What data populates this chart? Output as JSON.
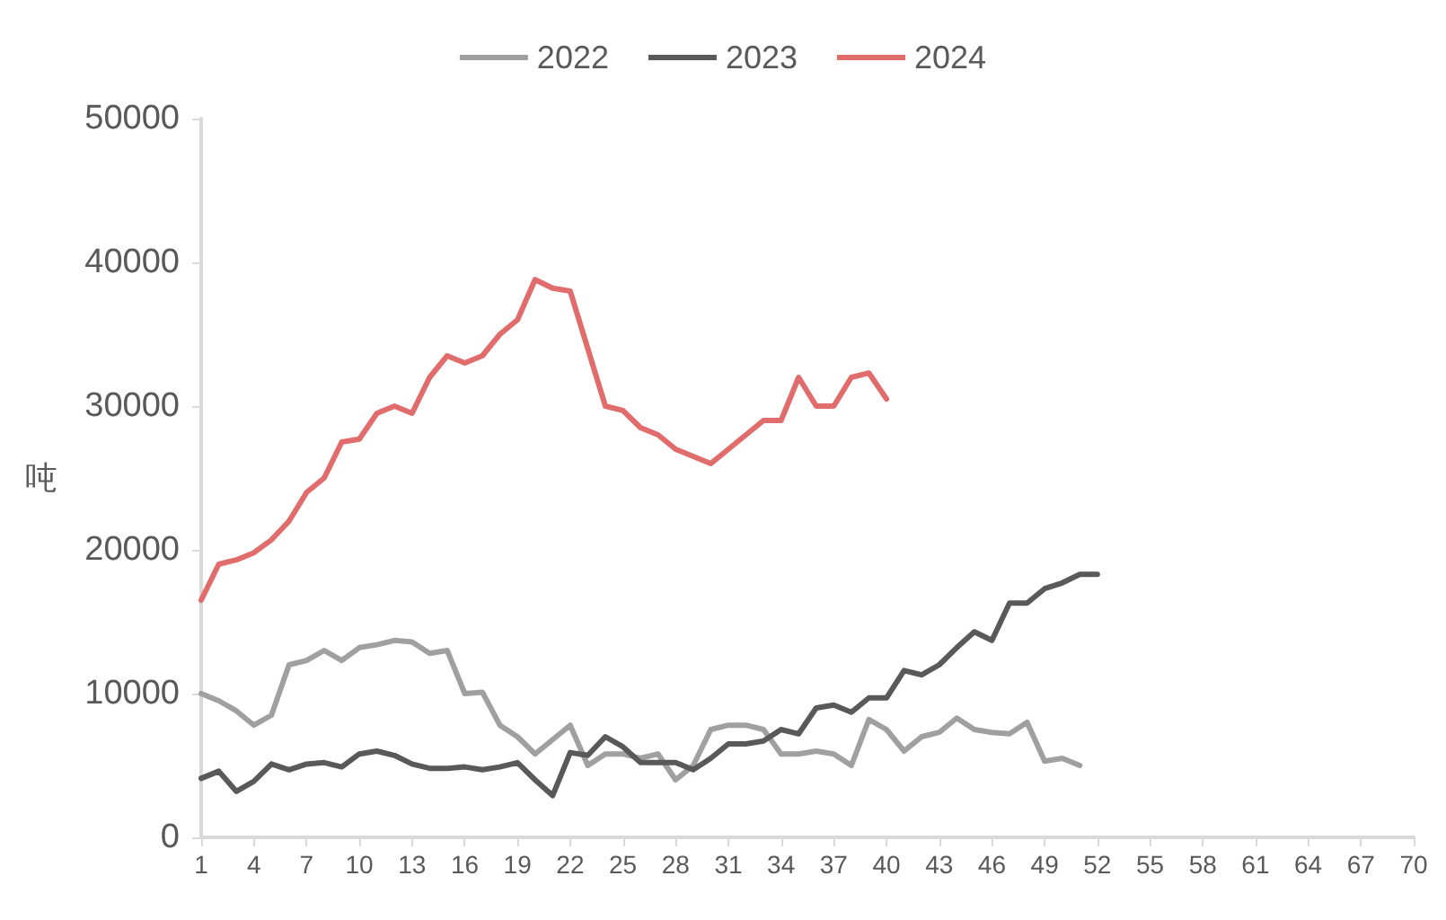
{
  "chart_data": {
    "type": "line",
    "ylabel": "吨",
    "legend": "top",
    "grid": false,
    "marker": "none",
    "line_style": "solid",
    "xlim": [
      1,
      70
    ],
    "xticks": [
      1,
      4,
      7,
      10,
      13,
      16,
      19,
      22,
      25,
      28,
      31,
      34,
      37,
      40,
      43,
      46,
      49,
      52,
      55,
      58,
      61,
      64,
      67,
      70
    ],
    "ylim": [
      0,
      50000
    ],
    "yticks": [
      0,
      10000,
      20000,
      30000,
      40000,
      50000
    ],
    "series": [
      {
        "name": "2022",
        "color": "#a0a0a0",
        "x": [
          1,
          2,
          3,
          4,
          5,
          6,
          7,
          8,
          9,
          10,
          11,
          12,
          13,
          14,
          15,
          16,
          17,
          18,
          19,
          20,
          21,
          22,
          23,
          24,
          25,
          26,
          27,
          28,
          29,
          30,
          31,
          32,
          33,
          34,
          35,
          36,
          37,
          38,
          39,
          40,
          41,
          42,
          43,
          44,
          45,
          46,
          47,
          48,
          49,
          50,
          51
        ],
        "values": [
          10000,
          9500,
          8800,
          7800,
          8500,
          12000,
          12300,
          13000,
          12300,
          13200,
          13400,
          13700,
          13600,
          12800,
          13000,
          10000,
          10100,
          7800,
          7000,
          5800,
          6800,
          7800,
          5000,
          5800,
          5800,
          5500,
          5800,
          4000,
          5000,
          7500,
          7800,
          7800,
          7500,
          5800,
          5800,
          6000,
          5800,
          5000,
          8200,
          7500,
          6000,
          7000,
          7300,
          8300,
          7500,
          7300,
          7200,
          8000,
          5300,
          5500,
          5000
        ]
      },
      {
        "name": "2023",
        "color": "#595959",
        "x": [
          1,
          2,
          3,
          4,
          5,
          6,
          7,
          8,
          9,
          10,
          11,
          12,
          13,
          14,
          15,
          16,
          17,
          18,
          19,
          20,
          21,
          22,
          23,
          24,
          25,
          26,
          27,
          28,
          29,
          30,
          31,
          32,
          33,
          34,
          35,
          36,
          37,
          38,
          39,
          40,
          41,
          42,
          43,
          44,
          45,
          46,
          47,
          48,
          49,
          50,
          51,
          52
        ],
        "values": [
          4100,
          4600,
          3200,
          3900,
          5100,
          4700,
          5100,
          5200,
          4900,
          5800,
          6000,
          5700,
          5100,
          4800,
          4800,
          4900,
          4700,
          4900,
          5200,
          4000,
          2900,
          5900,
          5700,
          7000,
          6300,
          5200,
          5200,
          5200,
          4700,
          5500,
          6500,
          6500,
          6700,
          7500,
          7200,
          9000,
          9200,
          8700,
          9700,
          9700,
          11600,
          11300,
          12000,
          13200,
          14300,
          13700,
          16300,
          16300,
          17300,
          17700,
          18300,
          18300
        ]
      },
      {
        "name": "2024",
        "color": "#e06c6c",
        "x": [
          1,
          2,
          3,
          4,
          5,
          6,
          7,
          8,
          9,
          10,
          11,
          12,
          13,
          14,
          15,
          16,
          17,
          18,
          19,
          20,
          21,
          22,
          23,
          24,
          25,
          26,
          27,
          28,
          29,
          30,
          31,
          32,
          33,
          34,
          35,
          36,
          37,
          38,
          39,
          40
        ],
        "values": [
          16500,
          19000,
          19300,
          19800,
          20700,
          22000,
          24000,
          25000,
          27500,
          27700,
          29500,
          30000,
          29500,
          32000,
          33500,
          33000,
          33500,
          35000,
          36000,
          38800,
          38200,
          38000,
          34000,
          30000,
          29700,
          28500,
          28000,
          27000,
          26500,
          26000,
          27000,
          28000,
          29000,
          29000,
          32000,
          30000,
          30000,
          32000,
          32300,
          30500
        ]
      }
    ]
  }
}
